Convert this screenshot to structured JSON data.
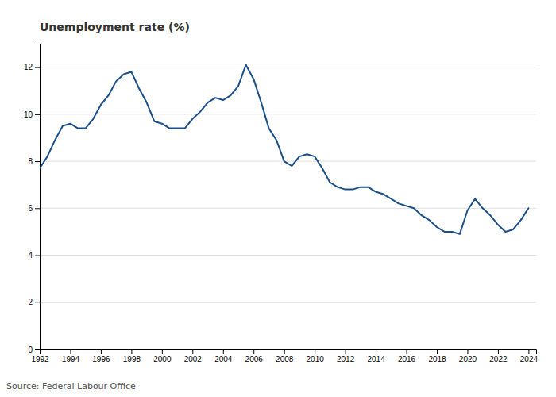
{
  "chart_data": {
    "type": "line",
    "title": "Unemployment rate (%)",
    "annotations": [
      "Source: Federal Labour Office"
    ],
    "color": "#1a4f8a",
    "x": [
      1992,
      1992.5,
      1993,
      1993.5,
      1994,
      1994.5,
      1995,
      1995.5,
      1996,
      1996.5,
      1997,
      1997.5,
      1998,
      1998.5,
      1999,
      1999.5,
      2000,
      2000.5,
      2001,
      2001.5,
      2002,
      2002.5,
      2003,
      2003.5,
      2004,
      2004.5,
      2005,
      2005.5,
      2006,
      2006.5,
      2007,
      2007.5,
      2008,
      2008.5,
      2009,
      2009.5,
      2010,
      2010.5,
      2011,
      2011.5,
      2012,
      2012.5,
      2013,
      2013.5,
      2014,
      2014.5,
      2015,
      2015.5,
      2016,
      2016.5,
      2017,
      2017.5,
      2018,
      2018.5,
      2019,
      2019.5,
      2020,
      2020.5,
      2021,
      2021.5,
      2022,
      2022.5,
      2023,
      2023.5,
      2024
    ],
    "values": [
      7.7,
      8.2,
      8.9,
      9.5,
      9.6,
      9.4,
      9.4,
      9.8,
      10.4,
      10.8,
      11.4,
      11.7,
      11.8,
      11.1,
      10.5,
      9.7,
      9.6,
      9.4,
      9.4,
      9.4,
      9.8,
      10.1,
      10.5,
      10.7,
      10.6,
      10.8,
      11.2,
      12.1,
      11.5,
      10.5,
      9.4,
      8.9,
      8.0,
      7.8,
      8.2,
      8.3,
      8.2,
      7.7,
      7.1,
      6.9,
      6.8,
      6.8,
      6.9,
      6.9,
      6.7,
      6.6,
      6.4,
      6.2,
      6.1,
      6.0,
      5.7,
      5.5,
      5.2,
      5.0,
      5.0,
      4.9,
      5.9,
      6.4,
      6.0,
      5.7,
      5.3,
      5.0,
      5.1,
      5.5,
      6.0
    ],
    "xlim": [
      1992,
      2024.5
    ],
    "xticks": [
      1992,
      1994,
      1996,
      1998,
      2000,
      2002,
      2004,
      2006,
      2008,
      2010,
      2012,
      2014,
      2016,
      2018,
      2020,
      2022,
      2024
    ],
    "ylim": [
      0,
      13
    ],
    "yticks": [
      0,
      2,
      4,
      6,
      8,
      10,
      12
    ],
    "grid": true
  }
}
